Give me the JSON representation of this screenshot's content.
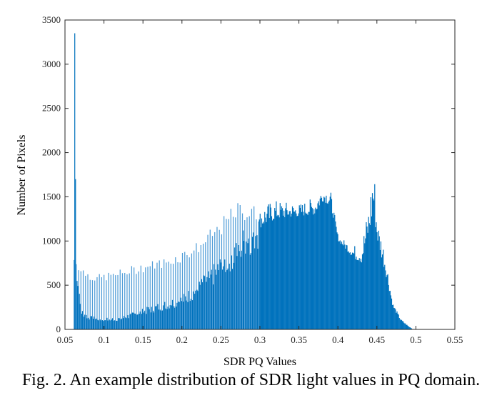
{
  "chart_data": {
    "type": "bar",
    "subtype": "histogram",
    "title": "",
    "xlabel": "SDR PQ Values",
    "ylabel": "Number of Pixels",
    "xlim": [
      0.05,
      0.55
    ],
    "ylim": [
      0,
      3500
    ],
    "xticks": [
      0.05,
      0.1,
      0.15,
      0.2,
      0.25,
      0.3,
      0.35,
      0.4,
      0.45,
      0.5,
      0.55
    ],
    "xtick_labels": [
      "0.05",
      "0.1",
      "0.15",
      "0.2",
      "0.25",
      "0.3",
      "0.35",
      "0.4",
      "0.45",
      "0.5",
      "0.55"
    ],
    "yticks": [
      0,
      500,
      1000,
      1500,
      2000,
      2500,
      3000,
      3500
    ],
    "ytick_labels": [
      "0",
      "500",
      "1000",
      "1500",
      "2000",
      "2500",
      "3000",
      "3500"
    ],
    "grid": false,
    "color": "#0072BD",
    "bin_range": [
      0.061,
      0.495
    ],
    "bin_count": 440,
    "spikes": [
      {
        "x": 0.0615,
        "value": 3350
      },
      {
        "x": 0.0625,
        "value": 1700
      }
    ],
    "envelope_high": {
      "x": [
        0.063,
        0.07,
        0.08,
        0.09,
        0.1,
        0.12,
        0.15,
        0.18,
        0.2,
        0.22,
        0.25,
        0.27,
        0.3,
        0.32,
        0.35,
        0.37,
        0.38,
        0.39,
        0.4,
        0.42,
        0.43,
        0.44,
        0.445,
        0.45,
        0.46,
        0.47,
        0.48,
        0.49,
        0.495
      ],
      "values": [
        850,
        720,
        660,
        620,
        640,
        680,
        760,
        820,
        900,
        1000,
        1250,
        1450,
        1400,
        1460,
        1420,
        1500,
        1620,
        1580,
        1050,
        950,
        1000,
        1450,
        2000,
        1250,
        900,
        300,
        120,
        40,
        10
      ]
    },
    "envelope_low": {
      "x": [
        0.063,
        0.07,
        0.08,
        0.09,
        0.1,
        0.12,
        0.15,
        0.18,
        0.2,
        0.22,
        0.25,
        0.27,
        0.3,
        0.32,
        0.35,
        0.37,
        0.38,
        0.39,
        0.4,
        0.42,
        0.43,
        0.44,
        0.445,
        0.45,
        0.46,
        0.47,
        0.48,
        0.49,
        0.495
      ],
      "values": [
        700,
        200,
        130,
        120,
        110,
        120,
        200,
        280,
        330,
        450,
        700,
        900,
        1150,
        1250,
        1280,
        1300,
        1450,
        1400,
        1000,
        800,
        750,
        1100,
        1300,
        1000,
        650,
        250,
        100,
        30,
        5
      ]
    }
  },
  "caption": "Fig. 2. An example distribution of SDR light values in PQ domain."
}
